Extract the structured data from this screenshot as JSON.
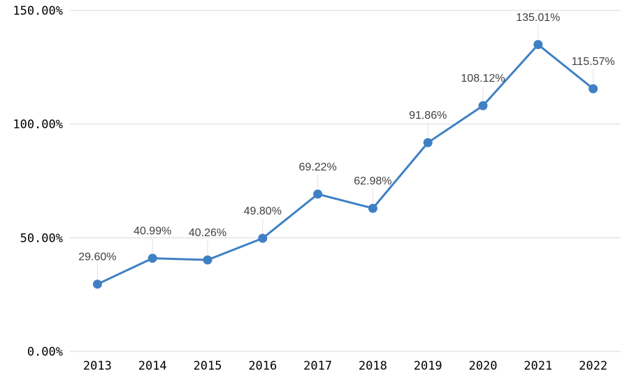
{
  "chart_data": {
    "type": "line",
    "title": "",
    "xlabel": "",
    "ylabel": "",
    "categories": [
      "2013",
      "2014",
      "2015",
      "2016",
      "2017",
      "2018",
      "2019",
      "2020",
      "2021",
      "2022"
    ],
    "series": [
      {
        "values": [
          29.6,
          40.99,
          40.26,
          49.8,
          69.22,
          62.98,
          91.86,
          108.12,
          135.01,
          115.57
        ],
        "labels": [
          "29.60%",
          "40.99%",
          "40.26%",
          "49.80%",
          "69.22%",
          "62.98%",
          "91.86%",
          "108.12%",
          "135.01%",
          "115.57%"
        ]
      }
    ],
    "ylim": [
      0,
      150
    ],
    "yticks": [
      0,
      50,
      100,
      150
    ],
    "ytick_labels": [
      "0.00%",
      "50.00%",
      "100.00%",
      "150.00%"
    ],
    "grid": true,
    "legend": "none",
    "colors": {
      "line": "#3f80c4",
      "marker": "#3f80c4",
      "grid": "#d9d9d9",
      "label": "#404040"
    }
  }
}
